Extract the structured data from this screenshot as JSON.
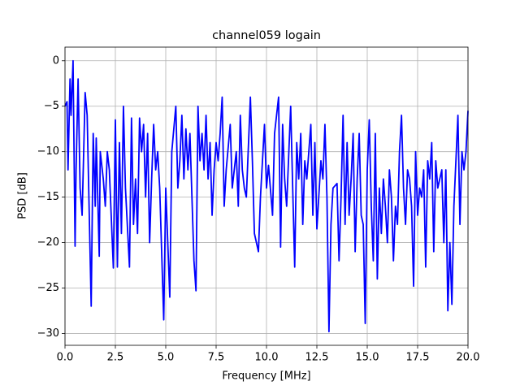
{
  "chart_data": {
    "type": "line",
    "title": "channel059 logain",
    "x_label": "Frequency [MHz]",
    "y_label": "PSD [dB]",
    "series": [
      {
        "name": "logain",
        "color": "#0000ff",
        "x": [
          0.0,
          0.1,
          0.15,
          0.25,
          0.3,
          0.4,
          0.5,
          0.55,
          0.65,
          0.75,
          0.85,
          1.0,
          1.1,
          1.3,
          1.4,
          1.5,
          1.55,
          1.7,
          1.75,
          1.9,
          2.0,
          2.1,
          2.2,
          2.4,
          2.5,
          2.6,
          2.7,
          2.8,
          2.9,
          3.0,
          3.2,
          3.3,
          3.4,
          3.5,
          3.6,
          3.7,
          3.8,
          3.9,
          4.0,
          4.1,
          4.2,
          4.3,
          4.4,
          4.5,
          4.6,
          4.7,
          4.9,
          5.0,
          5.2,
          5.3,
          5.5,
          5.6,
          5.7,
          5.8,
          5.9,
          6.0,
          6.1,
          6.2,
          6.4,
          6.5,
          6.6,
          6.7,
          6.8,
          6.9,
          7.0,
          7.1,
          7.2,
          7.3,
          7.4,
          7.5,
          7.6,
          7.7,
          7.8,
          7.9,
          8.0,
          8.2,
          8.3,
          8.5,
          8.6,
          8.7,
          8.8,
          8.9,
          9.0,
          9.2,
          9.3,
          9.4,
          9.6,
          9.7,
          9.9,
          10.0,
          10.1,
          10.3,
          10.4,
          10.6,
          10.7,
          10.8,
          10.9,
          11.0,
          11.2,
          11.3,
          11.4,
          11.5,
          11.6,
          11.7,
          11.8,
          11.9,
          12.0,
          12.2,
          12.3,
          12.4,
          12.5,
          12.7,
          12.8,
          12.9,
          13.0,
          13.1,
          13.2,
          13.3,
          13.5,
          13.6,
          13.7,
          13.8,
          13.9,
          14.0,
          14.1,
          14.2,
          14.3,
          14.4,
          14.5,
          14.6,
          14.7,
          14.8,
          14.9,
          15.0,
          15.1,
          15.2,
          15.3,
          15.4,
          15.5,
          15.6,
          15.7,
          15.8,
          15.9,
          16.0,
          16.1,
          16.2,
          16.3,
          16.4,
          16.5,
          16.6,
          16.7,
          16.8,
          16.9,
          17.0,
          17.1,
          17.2,
          17.3,
          17.4,
          17.5,
          17.6,
          17.7,
          17.8,
          17.9,
          18.0,
          18.1,
          18.2,
          18.3,
          18.4,
          18.5,
          18.6,
          18.7,
          18.8,
          18.9,
          19.0,
          19.1,
          19.2,
          19.3,
          19.5,
          19.6,
          19.7,
          19.8,
          19.9,
          20.0
        ],
        "values": [
          -5,
          -4.5,
          -12,
          -2,
          -6,
          0,
          -20.4,
          -12,
          -2,
          -14,
          -17,
          -3.5,
          -6,
          -27,
          -8,
          -16,
          -8.5,
          -21.5,
          -10,
          -13,
          -16,
          -10,
          -12,
          -22.8,
          -6.5,
          -22.7,
          -9,
          -19,
          -5,
          -14,
          -22.7,
          -6.3,
          -18,
          -13,
          -19,
          -6.3,
          -10,
          -7,
          -15,
          -8,
          -20,
          -13,
          -7,
          -12,
          -10,
          -14,
          -28.5,
          -14,
          -26,
          -10,
          -5,
          -14,
          -11,
          -6,
          -13,
          -7.5,
          -12,
          -8,
          -22,
          -25.3,
          -5,
          -11,
          -8,
          -12,
          -6,
          -13,
          -9,
          -17,
          -12,
          -9,
          -11,
          -8,
          -4,
          -16,
          -12,
          -7,
          -14,
          -10,
          -16,
          -6,
          -12,
          -14,
          -15,
          -4,
          -11,
          -19,
          -21,
          -15,
          -7,
          -14,
          -11.5,
          -17,
          -8,
          -4,
          -20.5,
          -7,
          -13,
          -16,
          -5,
          -14,
          -22.7,
          -9,
          -13,
          -8,
          -18,
          -11,
          -13,
          -7,
          -17,
          -9,
          -18.5,
          -11,
          -13,
          -7,
          -15,
          -29.8,
          -18,
          -14,
          -13.5,
          -22,
          -15,
          -6,
          -18,
          -9,
          -17,
          -13,
          -8,
          -21,
          -13,
          -8,
          -17,
          -18,
          -28.9,
          -12,
          -6.5,
          -16,
          -22,
          -8,
          -24,
          -14,
          -19,
          -13,
          -16,
          -20,
          -12,
          -15,
          -22,
          -16,
          -18,
          -10,
          -6,
          -14,
          -18,
          -12,
          -13,
          -16,
          -24.8,
          -10,
          -17,
          -14,
          -15,
          -12,
          -22.7,
          -11,
          -13,
          -9,
          -21,
          -11,
          -14,
          -13,
          -12,
          -20,
          -12,
          -27.5,
          -20,
          -26.8,
          -16,
          -6,
          -18,
          -10,
          -12,
          -10,
          -5.5
        ]
      }
    ],
    "xlim": [
      0,
      20
    ],
    "xticks": [
      {
        "value": 0,
        "label": "0.0"
      },
      {
        "value": 2.5,
        "label": "2.5"
      },
      {
        "value": 5,
        "label": "5.0"
      },
      {
        "value": 7.5,
        "label": "7.5"
      },
      {
        "value": 10,
        "label": "10.0"
      },
      {
        "value": 12.5,
        "label": "12.5"
      },
      {
        "value": 15,
        "label": "15.0"
      },
      {
        "value": 17.5,
        "label": "17.5"
      },
      {
        "value": 20,
        "label": "20.0"
      }
    ],
    "ylim": [
      -31.3,
      1.5
    ],
    "yticks": [
      {
        "value": 0,
        "label": "0"
      },
      {
        "value": -5,
        "label": "−5"
      },
      {
        "value": -10,
        "label": "−10"
      },
      {
        "value": -15,
        "label": "−15"
      },
      {
        "value": -20,
        "label": "−20"
      },
      {
        "value": -25,
        "label": "−25"
      },
      {
        "value": -30,
        "label": "−30"
      }
    ],
    "grid": true
  }
}
